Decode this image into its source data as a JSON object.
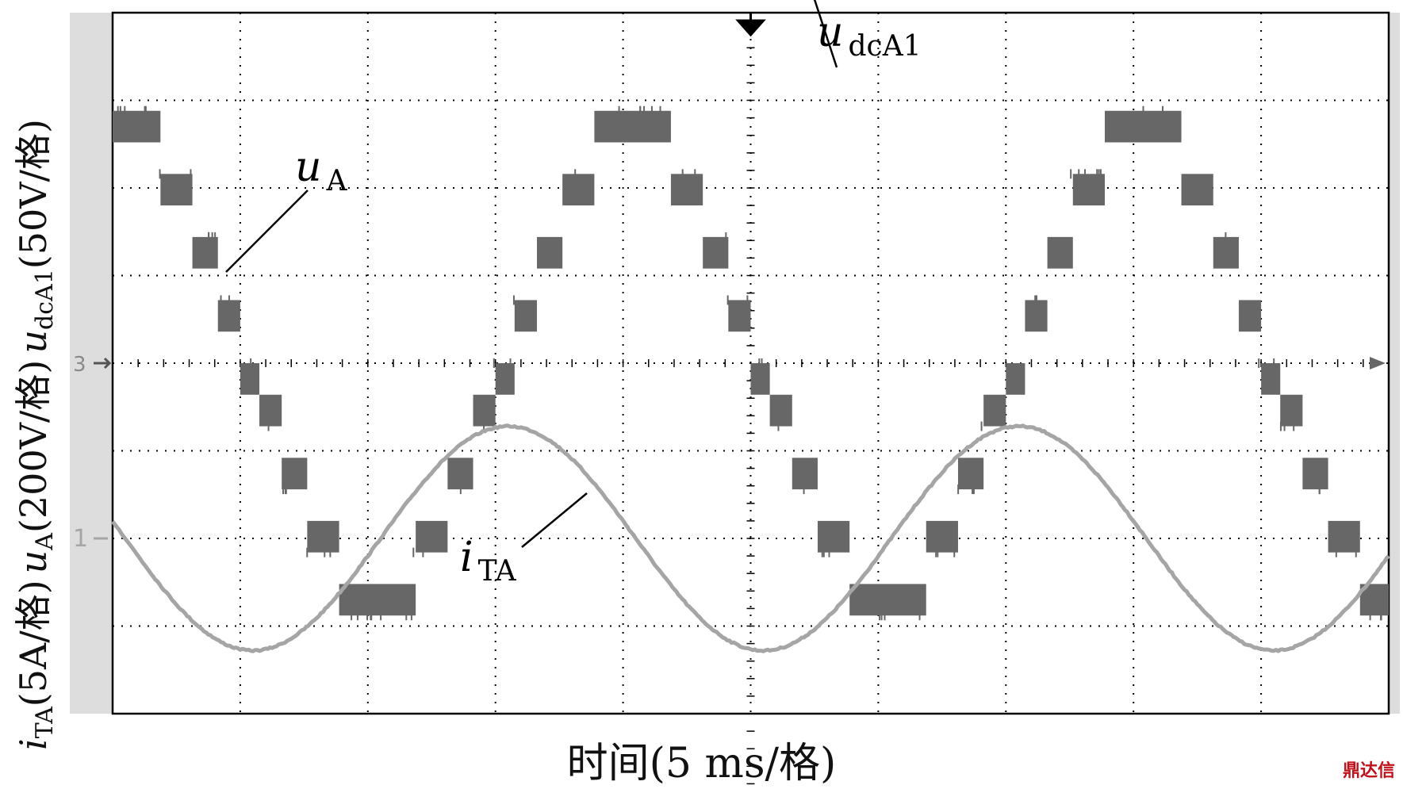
{
  "chart_data": {
    "type": "line",
    "title": "",
    "xlabel": "时间(5 ms/格)",
    "ylabel_parts": {
      "i_sym": "i",
      "i_sub": "TA",
      "i_scale": "(5A/格)",
      "u_sym": "u",
      "u_sub": "A",
      "u_scale": "(200V/格)",
      "d_sym": "u",
      "d_sub": "dcA1",
      "d_scale": "(50V/格)"
    },
    "x_unit_per_div_ms": 5,
    "x_divisions": 10,
    "y_divisions": 8,
    "xlim_ms": [
      0,
      50
    ],
    "grid": true,
    "series": [
      {
        "name": "u_dcA1",
        "label_sym": "u",
        "label_sub": "dcA1",
        "color": "#222222",
        "scale_per_div": 50,
        "unit": "V",
        "ground_div": 8.9,
        "shape": "flat",
        "x_ms": [
          0,
          50
        ],
        "y_div": [
          8.9,
          8.9
        ]
      },
      {
        "name": "u_A",
        "label_sym": "u",
        "label_sub": "A",
        "color": "#676767",
        "scale_per_div": 200,
        "unit": "V",
        "ground_div": 4.0,
        "shape": "multilevel-staircase",
        "period_ms": 20,
        "levels": [
          -4,
          -3,
          -2,
          -1,
          0,
          1,
          2,
          3,
          4
        ],
        "x_ms": [
          0,
          5,
          10,
          15,
          20,
          25,
          30,
          35,
          40,
          45,
          50
        ],
        "y_div": [
          3.0,
          -1.0,
          -3.0,
          1.0,
          3.0,
          -1.0,
          -3.0,
          1.0,
          3.0,
          -1.0,
          -3.0
        ]
      },
      {
        "name": "i_TA",
        "label_sym": "i",
        "label_sub": "TA",
        "color": "#a5a5a5",
        "scale_per_div": 5,
        "unit": "A",
        "ground_div": 2.0,
        "shape": "sine",
        "period_ms": 20,
        "peak_A": 6.4,
        "x_ms": [
          0,
          5,
          10,
          15,
          20,
          25,
          30,
          35,
          40,
          45,
          50
        ],
        "y_A": [
          0.0,
          -6.4,
          0.0,
          6.4,
          0.0,
          -6.4,
          0.0,
          6.4,
          0.0,
          -6.4,
          0.0
        ]
      }
    ],
    "markers": [
      {
        "text": "3",
        "color": "#8a8a8a",
        "side": "left"
      },
      {
        "text": "1",
        "color": "#a5a5a5",
        "side": "left"
      }
    ]
  },
  "footer": {
    "watermark": "鼎达信"
  }
}
